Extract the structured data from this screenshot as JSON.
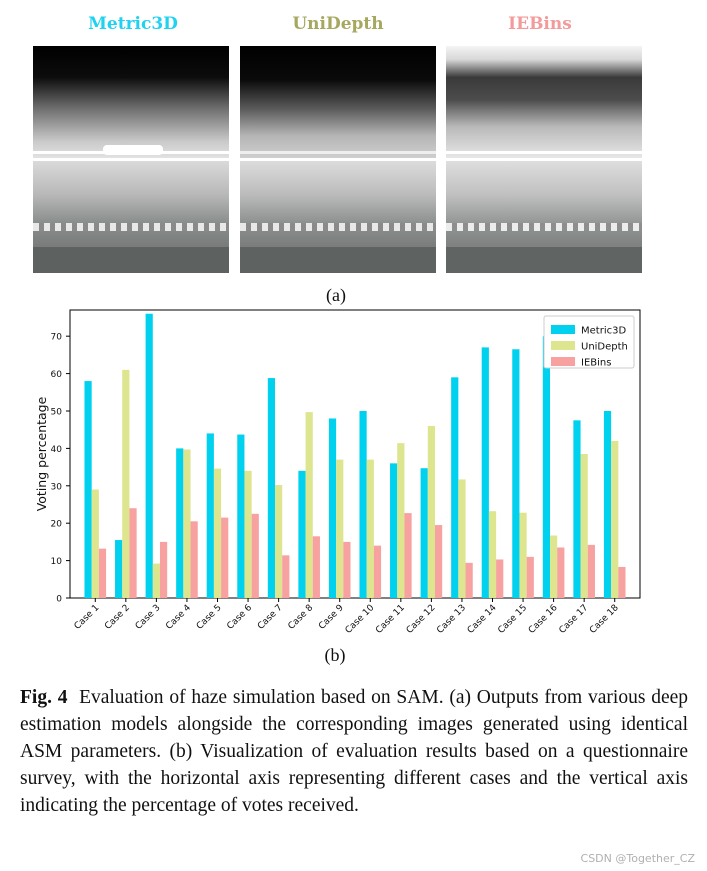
{
  "figure_a": {
    "titles": [
      {
        "text": "Metric3D",
        "color": "#1fd2f0"
      },
      {
        "text": "UniDepth",
        "color": "#a7a860"
      },
      {
        "text": "IEBins",
        "color": "#f39a9a"
      }
    ],
    "label": "(a)"
  },
  "figure_b": {
    "label": "(b)"
  },
  "chart_data": {
    "type": "bar",
    "title": "",
    "xlabel": "",
    "ylabel": "Voting percentage",
    "ylim": [
      0,
      77
    ],
    "yticks": [
      0,
      10,
      20,
      30,
      40,
      50,
      60,
      70
    ],
    "categories": [
      "Case 1",
      "Case 2",
      "Case 3",
      "Case 4",
      "Case 5",
      "Case 6",
      "Case 7",
      "Case 8",
      "Case 9",
      "Case 10",
      "Case 11",
      "Case 12",
      "Case 13",
      "Case 14",
      "Case 15",
      "Case 16",
      "Case 17",
      "Case 18"
    ],
    "series": [
      {
        "name": "Metric3D",
        "color": "#00d1ef",
        "values": [
          58,
          15.5,
          76,
          40,
          44,
          43.7,
          58.8,
          34,
          48,
          50,
          36,
          34.7,
          59,
          67,
          66.5,
          70,
          47.5,
          50
        ]
      },
      {
        "name": "UniDepth",
        "color": "#dde58e",
        "values": [
          29,
          61,
          9.2,
          39.7,
          34.6,
          34,
          30.2,
          49.7,
          37,
          37,
          41.4,
          46,
          31.7,
          23.2,
          22.8,
          16.7,
          38.5,
          42
        ]
      },
      {
        "name": "IEBins",
        "color": "#f7a1a0",
        "values": [
          13.2,
          24,
          15,
          20.5,
          21.5,
          22.5,
          11.4,
          16.5,
          15,
          14,
          22.7,
          19.5,
          9.4,
          10.3,
          11,
          13.5,
          14.2,
          8.3
        ]
      }
    ],
    "legend_position": "top-right"
  },
  "caption": {
    "prefix": "Fig. 4",
    "text": "Evaluation of haze simulation based on SAM. (a) Outputs from various deep estimation models alongside the corresponding images generated using identical ASM parameters. (b) Visualization of evaluation results based on a questionnaire survey, with the horizontal axis representing different cases and the vertical axis indicating the percentage of votes received."
  },
  "watermark": "CSDN @Together_CZ"
}
